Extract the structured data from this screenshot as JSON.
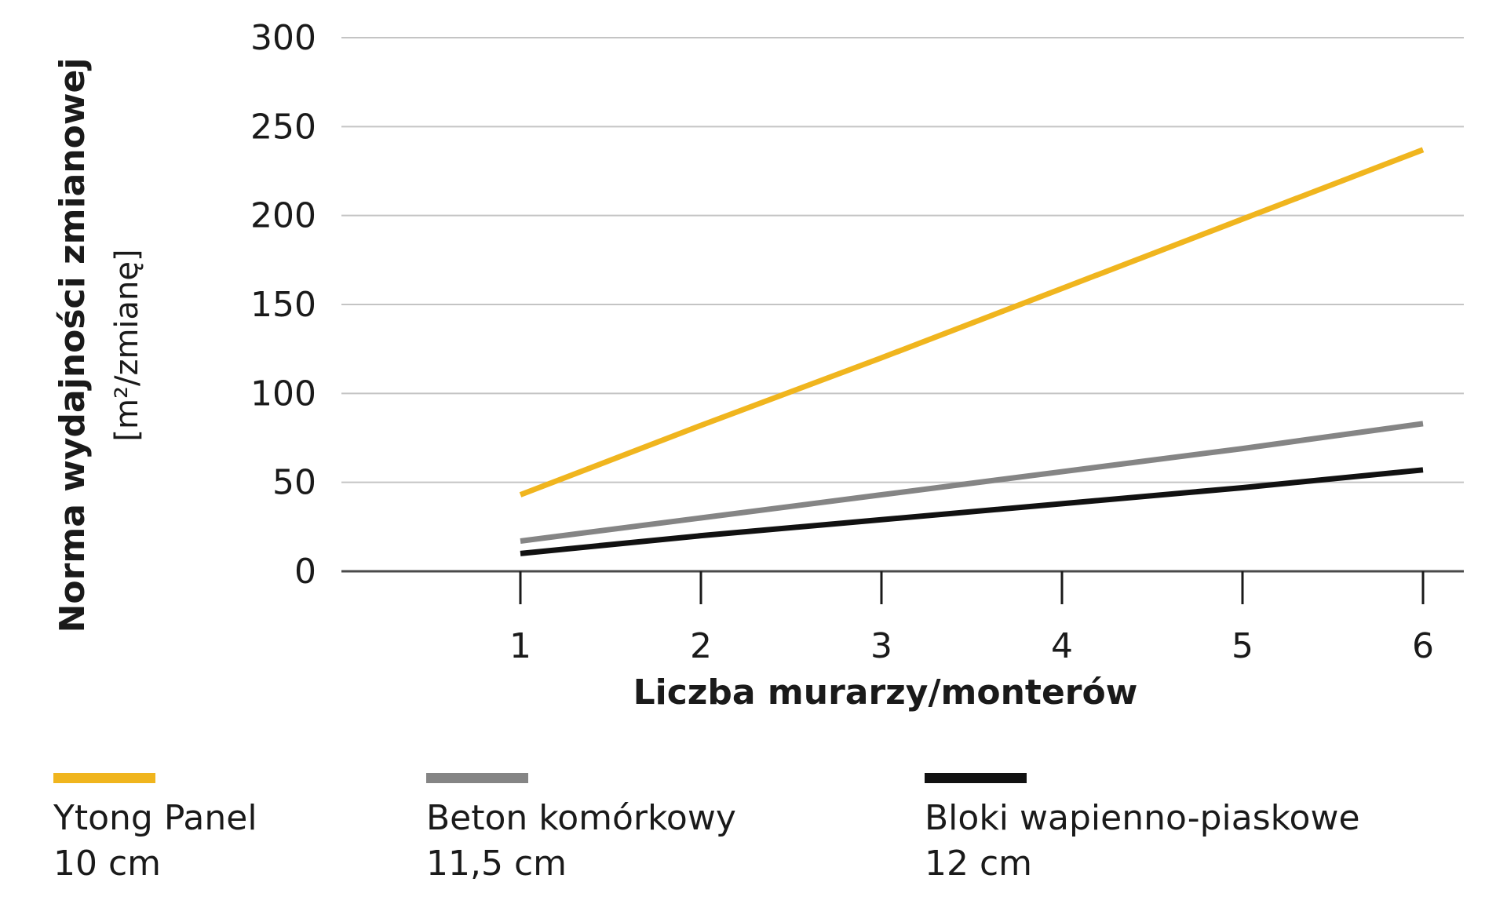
{
  "chart_data": {
    "type": "line",
    "x": [
      1,
      2,
      3,
      4,
      5,
      6
    ],
    "xlim": [
      1,
      6
    ],
    "ylim": [
      0,
      300
    ],
    "y_ticks": [
      "0",
      "50",
      "100",
      "150",
      "200",
      "250",
      "300"
    ],
    "x_ticks": [
      "1",
      "2",
      "3",
      "4",
      "5",
      "6"
    ],
    "xlabel": "Liczba murarzy/monterów",
    "ylabel": "Norma wydajności zmianowej",
    "ylabel_unit": "[m²/zmianę]",
    "grid": "horizontal",
    "legend_position": "bottom",
    "series": [
      {
        "name": "Ytong Panel",
        "subtitle": "10 cm",
        "color": "#f0b51e",
        "values": [
          43,
          82,
          120,
          159,
          198,
          237
        ]
      },
      {
        "name": "Beton komórkowy",
        "subtitle": "11,5 cm",
        "color": "#858585",
        "values": [
          17,
          30,
          43,
          56,
          69,
          83
        ]
      },
      {
        "name": "Bloki wapienno-piaskowe",
        "subtitle": "12 cm",
        "color": "#111111",
        "values": [
          10,
          20,
          29,
          38,
          47,
          57
        ]
      }
    ]
  }
}
